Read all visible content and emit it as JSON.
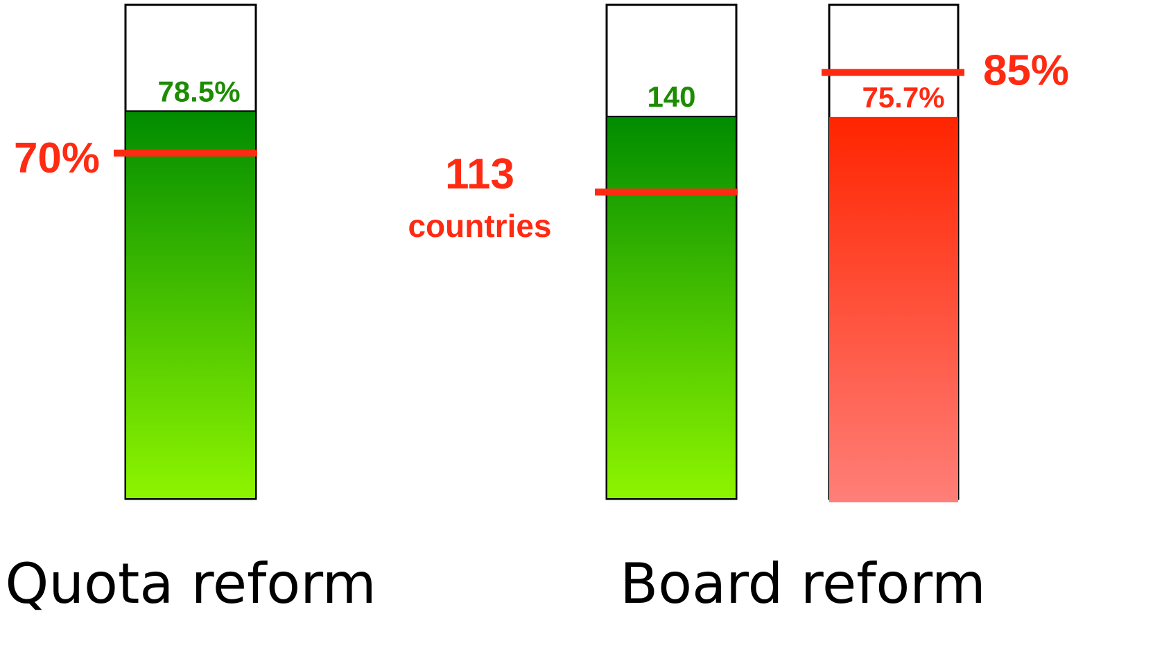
{
  "chart_data": {
    "type": "bar",
    "groups": [
      {
        "label": "Quota reform",
        "bars": [
          {
            "value_label": "78.5%",
            "fill_fraction": 0.785,
            "fill_color": "green",
            "threshold_label": "70%",
            "threshold_fraction": 0.7
          }
        ]
      },
      {
        "label": "Board reform",
        "bars": [
          {
            "value_label": "140",
            "fill_fraction": 0.774,
            "fill_color": "green",
            "threshold_label": "113",
            "threshold_sublabel": "countries",
            "threshold_fraction": 0.621
          },
          {
            "value_label": "75.7%",
            "fill_fraction": 0.773,
            "fill_color": "red",
            "threshold_label": "85%",
            "threshold_fraction": 0.863
          }
        ]
      }
    ]
  },
  "colors": {
    "green_top": "#008c00",
    "green_bottom": "#8ef500",
    "red_top": "#ff2400",
    "red_bottom": "#ff7f78",
    "value_green": "#1c8c00",
    "value_red": "#ff2a12",
    "threshold": "#ff2a12",
    "outline": "#000000",
    "category_text": "#000000"
  }
}
